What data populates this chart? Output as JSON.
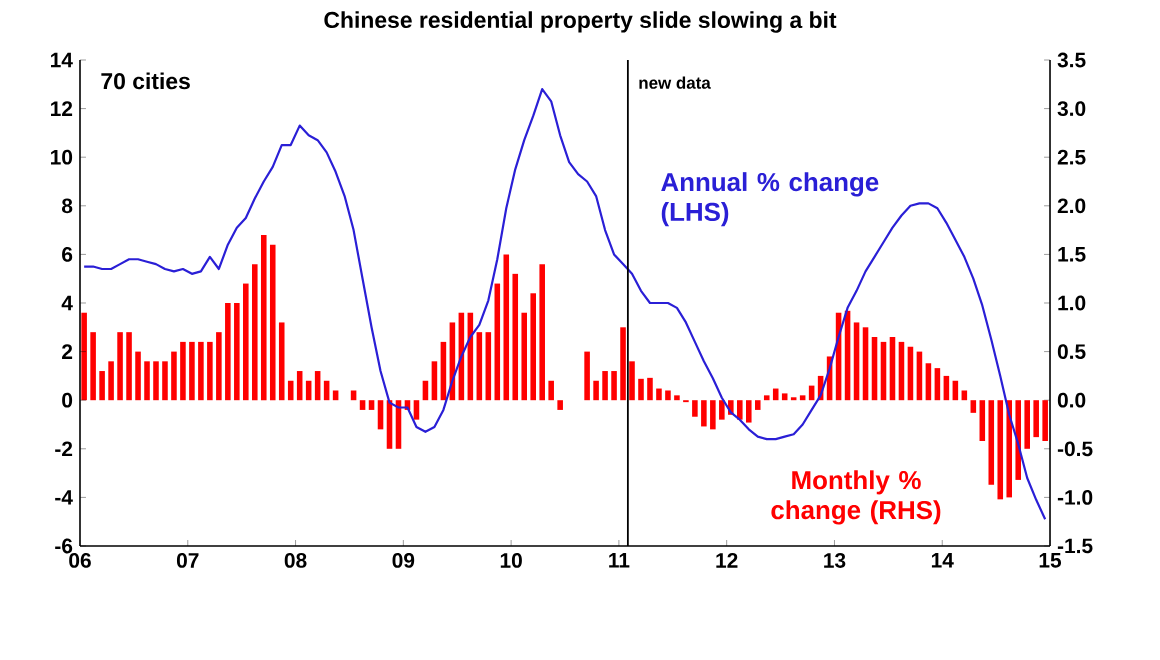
{
  "chart_data": {
    "type": "line",
    "title": "Chinese residential property slide slowing a bit",
    "annotations": [
      "70 cities"
    ],
    "x": [
      "2006-01-15",
      "2006-02-15",
      "2006-03-15",
      "2006-04-15",
      "2006-05-15",
      "2006-06-15",
      "2006-07-15",
      "2006-08-15",
      "2006-09-15",
      "2006-10-15",
      "2006-11-15",
      "2006-12-15",
      "2007-01-15",
      "2007-02-15",
      "2007-03-15",
      "2007-04-15",
      "2007-05-15",
      "2007-06-15",
      "2007-07-15",
      "2007-08-15",
      "2007-09-15",
      "2007-10-15",
      "2007-11-15",
      "2007-12-15",
      "2008-01-15",
      "2008-02-15",
      "2008-03-15",
      "2008-04-15",
      "2008-05-15",
      "2008-06-15",
      "2008-07-15",
      "2008-08-15",
      "2008-09-15",
      "2008-10-15",
      "2008-11-15",
      "2008-12-15",
      "2009-01-15",
      "2009-02-15",
      "2009-03-15",
      "2009-04-15",
      "2009-05-15",
      "2009-06-15",
      "2009-07-15",
      "2009-08-15",
      "2009-09-15",
      "2009-10-15",
      "2009-11-15",
      "2009-12-15",
      "2010-01-15",
      "2010-02-15",
      "2010-03-15",
      "2010-04-15",
      "2010-05-15",
      "2010-06-15",
      "2010-07-15",
      "2010-08-15",
      "2010-09-15",
      "2010-10-15",
      "2010-11-15",
      "2010-12-15",
      "2011-01-15",
      "2011-02-15",
      "2011-03-15",
      "2011-04-15",
      "2011-05-15",
      "2011-06-15",
      "2011-07-15",
      "2011-08-15",
      "2011-09-15",
      "2011-10-15",
      "2011-11-15",
      "2011-12-15",
      "2012-01-15",
      "2012-02-15",
      "2012-03-15",
      "2012-04-15",
      "2012-05-15",
      "2012-06-15",
      "2012-07-15",
      "2012-08-15",
      "2012-09-15",
      "2012-10-15",
      "2012-11-15",
      "2012-12-15",
      "2013-01-15",
      "2013-02-15",
      "2013-03-15",
      "2013-04-15",
      "2013-05-15",
      "2013-06-15",
      "2013-07-15",
      "2013-08-15",
      "2013-09-15",
      "2013-10-15",
      "2013-11-15",
      "2013-12-15",
      "2014-01-15",
      "2014-02-15",
      "2014-03-15",
      "2014-04-15",
      "2014-05-15",
      "2014-06-15",
      "2014-07-15",
      "2014-08-15",
      "2014-09-15",
      "2014-10-15",
      "2014-11-15",
      "2014-12-15"
    ],
    "series": [
      {
        "name": "Monthly % change (RHS)",
        "type": "bar",
        "axis": "y2",
        "color": "#ff0000",
        "values": [
          0.9,
          0.7,
          0.3,
          0.4,
          0.7,
          0.7,
          0.5,
          0.4,
          0.4,
          0.4,
          0.5,
          0.6,
          0.6,
          0.6,
          0.6,
          0.7,
          1.0,
          1.0,
          1.2,
          1.4,
          1.7,
          1.6,
          0.8,
          0.2,
          0.3,
          0.2,
          0.3,
          0.2,
          0.1,
          null,
          0.1,
          -0.1,
          -0.1,
          -0.3,
          -0.5,
          -0.5,
          -0.1,
          -0.2,
          0.2,
          0.4,
          0.6,
          0.8,
          0.9,
          0.9,
          0.7,
          0.7,
          1.2,
          1.5,
          1.3,
          0.9,
          1.1,
          1.4,
          0.2,
          -0.1,
          null,
          null,
          0.5,
          0.2,
          0.3,
          0.3,
          0.75,
          0.4,
          0.22,
          0.23,
          0.12,
          0.1,
          0.05,
          -0.02,
          -0.17,
          -0.27,
          -0.3,
          -0.2,
          -0.15,
          -0.2,
          -0.23,
          -0.1,
          0.05,
          0.12,
          0.07,
          0.03,
          0.05,
          0.15,
          0.25,
          0.45,
          0.9,
          0.92,
          0.8,
          0.75,
          0.65,
          0.6,
          0.65,
          0.6,
          0.55,
          0.5,
          0.38,
          0.33,
          0.25,
          0.2,
          0.1,
          -0.13,
          -0.42,
          -0.87,
          -1.02,
          -1.0,
          -0.82,
          -0.5,
          -0.38,
          -0.42
        ]
      },
      {
        "name": "Annual % change (LHS)",
        "axis": "y",
        "color": "#2a1fd6",
        "values": [
          5.5,
          5.5,
          5.4,
          5.4,
          5.6,
          5.8,
          5.8,
          5.7,
          5.6,
          5.4,
          5.3,
          5.4,
          5.2,
          5.3,
          5.9,
          5.4,
          6.4,
          7.1,
          7.5,
          8.3,
          9.0,
          9.6,
          10.5,
          10.5,
          11.3,
          10.9,
          10.7,
          10.2,
          9.4,
          8.4,
          7.0,
          5.0,
          3.0,
          1.2,
          -0.1,
          -0.3,
          -0.3,
          -1.1,
          -1.3,
          -1.1,
          -0.4,
          0.8,
          1.8,
          2.6,
          3.1,
          4.1,
          5.8,
          7.9,
          9.5,
          10.7,
          11.7,
          12.8,
          12.3,
          10.9,
          9.8,
          9.3,
          9.0,
          8.4,
          7.0,
          6.0,
          5.6,
          5.2,
          4.5,
          4.0,
          4.0,
          4.0,
          3.8,
          3.2,
          2.4,
          1.6,
          0.9,
          0.1,
          -0.5,
          -0.8,
          -1.2,
          -1.5,
          -1.6,
          -1.6,
          -1.5,
          -1.4,
          -1.0,
          -0.4,
          0.2,
          1.3,
          2.6,
          3.8,
          4.5,
          5.3,
          5.9,
          6.5,
          7.1,
          7.6,
          8.0,
          8.1,
          8.1,
          7.9,
          7.3,
          6.6,
          5.9,
          5.0,
          3.9,
          2.5,
          1.0,
          -0.6,
          -1.8,
          -3.2,
          -4.1,
          -4.9
        ]
      }
    ],
    "xlim": [
      "2006",
      "2015"
    ],
    "xticks": [
      {
        "value": "2006",
        "label": "06"
      },
      {
        "value": "2007",
        "label": "07"
      },
      {
        "value": "2008",
        "label": "08"
      },
      {
        "value": "2009",
        "label": "09"
      },
      {
        "value": "2010",
        "label": "10"
      },
      {
        "value": "2011",
        "label": "11"
      },
      {
        "value": "2012",
        "label": "12"
      },
      {
        "value": "2013",
        "label": "13"
      },
      {
        "value": "2014",
        "label": "14"
      },
      {
        "value": "2015",
        "label": "15"
      }
    ],
    "ylim": [
      -6,
      14
    ],
    "yticks": [
      -6,
      -4,
      -2,
      0,
      2,
      4,
      6,
      8,
      10,
      12,
      14
    ],
    "y2lim": [
      -1.5,
      3.5
    ],
    "y2ticks": [
      -1.5,
      {
        "value": -1,
        "label": "-1.0"
      },
      -0.5,
      {
        "value": 0,
        "label": "0.0"
      },
      0.5,
      {
        "value": 1,
        "label": "1.0"
      },
      1.5,
      {
        "value": 2,
        "label": "2.0"
      },
      2.5,
      {
        "value": 3,
        "label": "3.0"
      },
      3.5
    ],
    "ref_lines": [
      {
        "axis": "x",
        "value": "2011-02",
        "label": "new data",
        "color": "#000000"
      }
    ],
    "marker": "none",
    "line_style": "solid"
  }
}
